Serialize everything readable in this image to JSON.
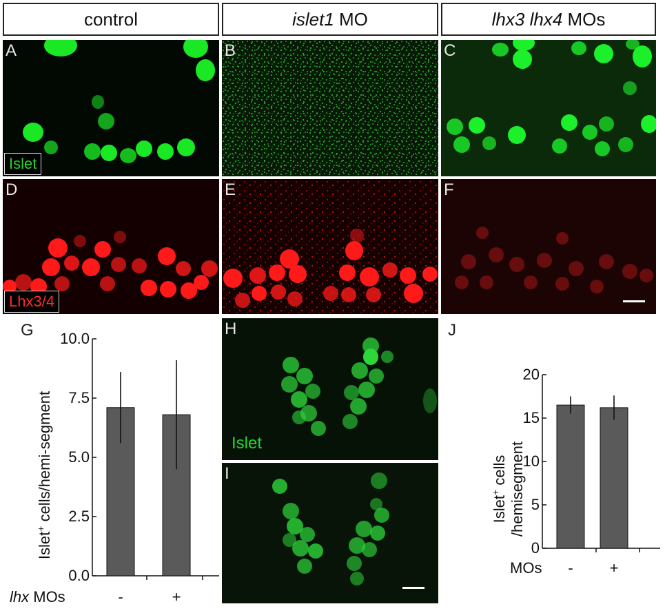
{
  "headers": {
    "control": "control",
    "islet1_gene": "islet1",
    "islet1_suffix": " MO",
    "lhx3": "lhx3",
    "lhx4": "lhx4",
    "lhx_suffix": " MOs"
  },
  "panel_labels": [
    "A",
    "B",
    "C",
    "D",
    "E",
    "F",
    "G",
    "H",
    "I",
    "J"
  ],
  "stains": {
    "islet": "Islet",
    "lhx": "Lhx3/4",
    "islet_H": "Islet"
  },
  "colors": {
    "green": "#22d82a",
    "red": "#ff1a1a",
    "bar": "#5a5a5a"
  },
  "chart_data": [
    {
      "type": "bar",
      "ylabel_pre": "Islet",
      "ylabel_sup": "+",
      "ylabel_post": " cells/hemi-segment",
      "xlabel_gene": "lhx",
      "xlabel_post": " MOs",
      "categories": [
        "-",
        "+"
      ],
      "values": [
        7.1,
        6.8
      ],
      "errors": [
        1.5,
        2.3
      ],
      "yticks": [
        "0.0",
        "2.5",
        "5.0",
        "7.5",
        "10.0"
      ],
      "ylim": [
        0,
        10
      ]
    },
    {
      "type": "bar",
      "ylabel_line1_pre": "Islet",
      "ylabel_line1_sup": "+",
      "ylabel_line1_post": " cells",
      "ylabel_line2": "/hemisegment",
      "xlabel": "MOs",
      "categories": [
        "-",
        "+"
      ],
      "values": [
        16.5,
        16.2
      ],
      "errors": [
        1.0,
        1.4
      ],
      "yticks": [
        "0",
        "5",
        "10",
        "15",
        "20"
      ],
      "ylim": [
        0,
        20
      ]
    }
  ]
}
